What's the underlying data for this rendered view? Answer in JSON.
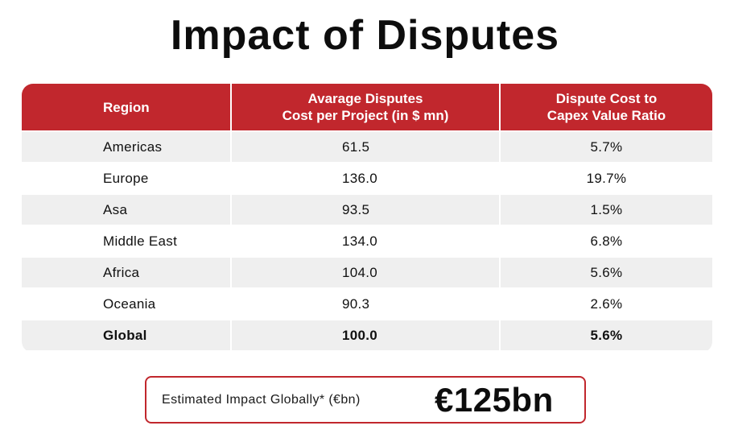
{
  "title": "Impact of Disputes",
  "table": {
    "headers": {
      "region": "Region",
      "cost_line1": "Avarage Disputes",
      "cost_line2": "Cost per Project (in $ mn)",
      "ratio_line1": "Dispute Cost to",
      "ratio_line2": "Capex Value Ratio"
    },
    "rows": [
      {
        "region": "Americas",
        "cost": "61.5",
        "ratio": "5.7%"
      },
      {
        "region": "Europe",
        "cost": "136.0",
        "ratio": "19.7%"
      },
      {
        "region": "Asa",
        "cost": "93.5",
        "ratio": "1.5%"
      },
      {
        "region": "Middle East",
        "cost": "134.0",
        "ratio": "6.8%"
      },
      {
        "region": "Africa",
        "cost": "104.0",
        "ratio": "5.6%"
      },
      {
        "region": "Oceania",
        "cost": "90.3",
        "ratio": "2.6%"
      },
      {
        "region": "Global",
        "cost": "100.0",
        "ratio": "5.6%"
      }
    ]
  },
  "impact": {
    "label": "Estimated Impact Globally* (€bn)",
    "value": "€125bn"
  },
  "colors": {
    "accent": "#c1272d",
    "row_shade": "#efefef"
  }
}
